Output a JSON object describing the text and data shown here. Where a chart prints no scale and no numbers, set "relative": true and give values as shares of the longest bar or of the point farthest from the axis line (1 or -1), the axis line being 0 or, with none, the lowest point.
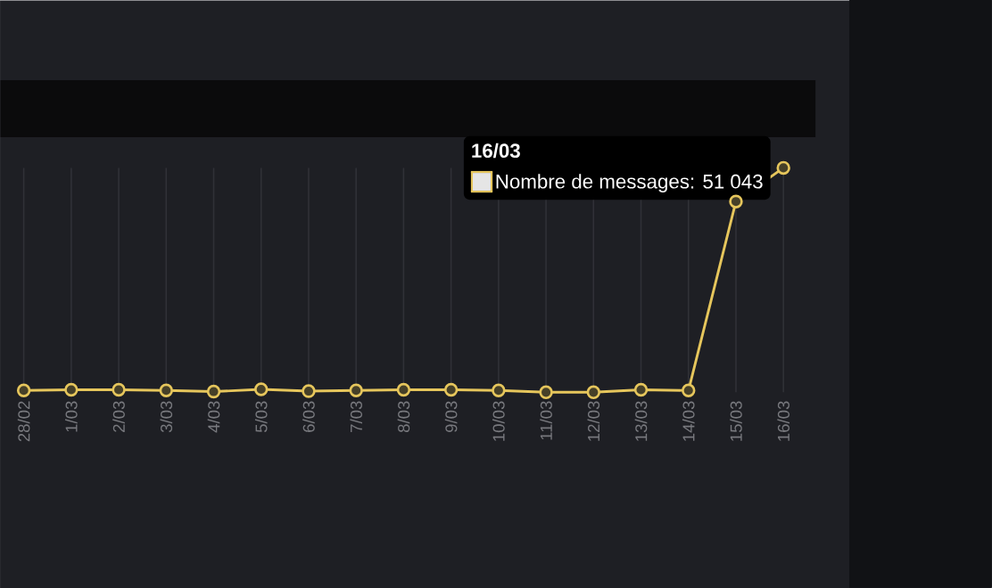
{
  "chart_data": {
    "type": "line",
    "relative": true,
    "categories": [
      "28/02",
      "1/03",
      "2/03",
      "3/03",
      "4/03",
      "5/03",
      "6/03",
      "7/03",
      "8/03",
      "9/03",
      "10/03",
      "11/03",
      "12/03",
      "13/03",
      "14/03",
      "15/03",
      "16/03"
    ],
    "series": [
      {
        "color": "#e6c65c",
        "values": [
          0.008,
          0.011,
          0.011,
          0.008,
          0.003,
          0.013,
          0.005,
          0.008,
          0.011,
          0.011,
          0.008,
          0,
          0,
          0.011,
          0.008,
          0.85,
          1
        ]
      }
    ],
    "marker": "circle",
    "line_style": "solid",
    "grid": "x",
    "annotations": [
      "16/03",
      "Nombre de messages: 51 043"
    ]
  }
}
